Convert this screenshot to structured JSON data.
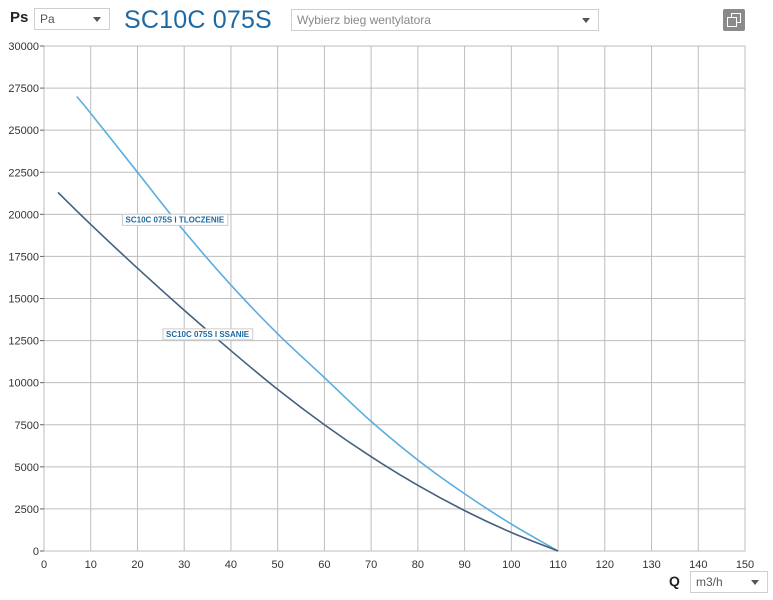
{
  "header": {
    "y_axis_symbol": "Ps",
    "y_unit": "Pa",
    "model_title": "SC10C 075S",
    "fan_speed_placeholder": "Wybierz bieg wentylatora",
    "copy_icon": "copy-icon"
  },
  "footer": {
    "x_axis_symbol": "Q",
    "x_unit": "m3/h"
  },
  "colors": {
    "title": "#1b6aa5",
    "series_tloczenie": "#5aade0",
    "series_ssanie": "#44607e",
    "label_text": "#1b6aa5",
    "grid": "#bdbdbd"
  },
  "chart_data": {
    "type": "line",
    "xlabel": "Q",
    "ylabel": "Ps",
    "xlim": [
      0,
      150
    ],
    "ylim": [
      0,
      30000
    ],
    "xticks": [
      "0",
      "10",
      "20",
      "30",
      "40",
      "50",
      "60",
      "70",
      "80",
      "90",
      "100",
      "110",
      "120",
      "130",
      "140",
      "150"
    ],
    "yticks": [
      "0",
      "2500",
      "5000",
      "7500",
      "10000",
      "12500",
      "15000",
      "17500",
      "20000",
      "22500",
      "25000",
      "27500",
      "30000"
    ],
    "grid": true,
    "series": [
      {
        "name": "SC10C 075S I TLOCZENIE",
        "x": [
          7,
          10,
          20,
          30,
          40,
          50,
          60,
          70,
          80,
          90,
          100,
          110
        ],
        "y": [
          27000,
          26000,
          22500,
          19000,
          15800,
          12900,
          10300,
          7700,
          5400,
          3400,
          1600,
          0
        ]
      },
      {
        "name": "SC10C 075S I SSANIE",
        "x": [
          3,
          10,
          20,
          30,
          40,
          50,
          60,
          70,
          80,
          90,
          100,
          110
        ],
        "y": [
          21300,
          19400,
          16800,
          14300,
          11900,
          9600,
          7500,
          5600,
          3900,
          2400,
          1100,
          0
        ]
      }
    ]
  }
}
